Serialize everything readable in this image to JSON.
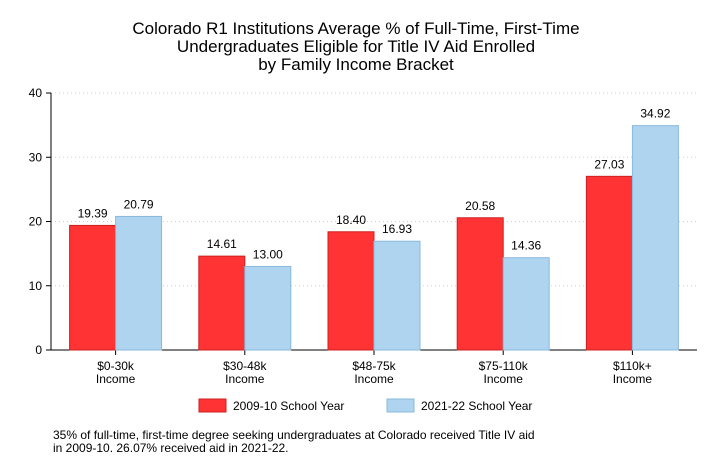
{
  "chart_data": {
    "type": "bar",
    "title": [
      "Colorado R1 Institutions Average % of Full-Time, First-Time",
      "Undergraduates Eligible for Title IV Aid Enrolled",
      "by Family Income Bracket"
    ],
    "categories": [
      [
        "$0-30k",
        "Income"
      ],
      [
        "$30-48k",
        "Income"
      ],
      [
        "$48-75k",
        "Income"
      ],
      [
        "$75-110k",
        "Income"
      ],
      [
        "$110k+",
        "Income"
      ]
    ],
    "series": [
      {
        "name": "2009-10 School Year",
        "values": [
          19.39,
          14.61,
          18.4,
          20.58,
          27.03
        ],
        "labels": [
          "19.39",
          "14.61",
          "18.40",
          "20.58",
          "27.03"
        ],
        "color": "#ff3333",
        "stroke": "#cc2020"
      },
      {
        "name": "2021-22 School Year",
        "values": [
          20.79,
          13.0,
          16.93,
          14.36,
          34.92
        ],
        "labels": [
          "20.79",
          "13.00",
          "16.93",
          "14.36",
          "34.92"
        ],
        "color": "#aed4f0",
        "stroke": "#8ab8dd"
      }
    ],
    "ylim": [
      0,
      40
    ],
    "yticks": [
      0,
      10,
      20,
      30,
      40
    ],
    "grid": true,
    "legend_position": "bottom"
  },
  "note": [
    "35% of full-time, first-time degree seeking undergraduates at Colorado received Title IV aid",
    "in 2009-10. 26.07% received aid in 2021-22."
  ]
}
